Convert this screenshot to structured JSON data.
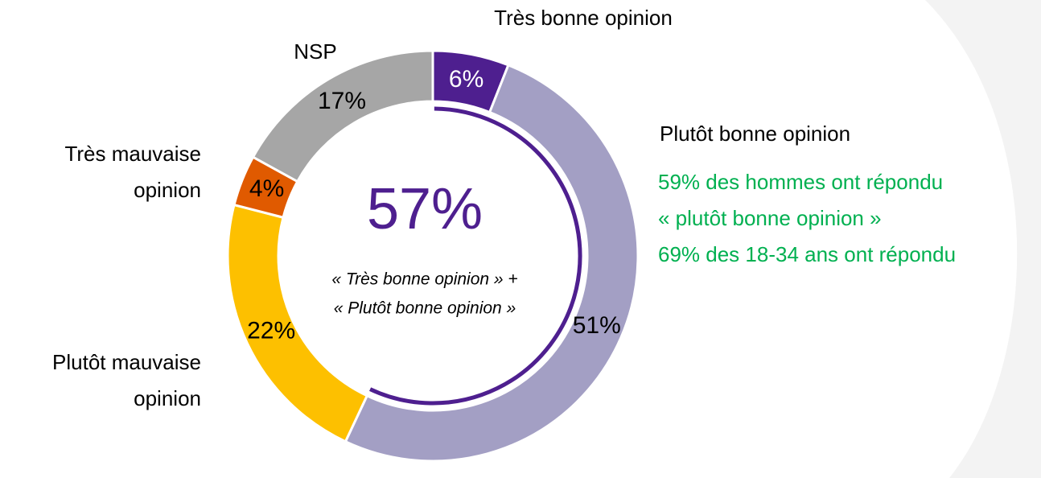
{
  "chart_data": {
    "type": "donut",
    "categories": [
      "Très bonne opinion",
      "Plutôt bonne opinion",
      "Plutôt mauvaise opinion",
      "Très mauvaise opinion",
      "NSP"
    ],
    "values": [
      6,
      51,
      22,
      4,
      17
    ],
    "value_labels": [
      "6%",
      "51%",
      "22%",
      "4%",
      "17%"
    ],
    "colors": [
      "#4e1f8f",
      "#a39fc4",
      "#fdc000",
      "#e05a00",
      "#a6a6a6"
    ],
    "highlight": {
      "value": 57,
      "value_label": "57%",
      "caption": [
        "« Très bonne opinion » +",
        "« Plutôt bonne opinion »"
      ],
      "color": "#4e1f8f"
    },
    "annotation": {
      "color": "#00b050",
      "lines": [
        "59% des hommes ont répondu",
        "« plutôt bonne opinion »",
        "69% des 18-34 ans ont répondu"
      ]
    }
  }
}
